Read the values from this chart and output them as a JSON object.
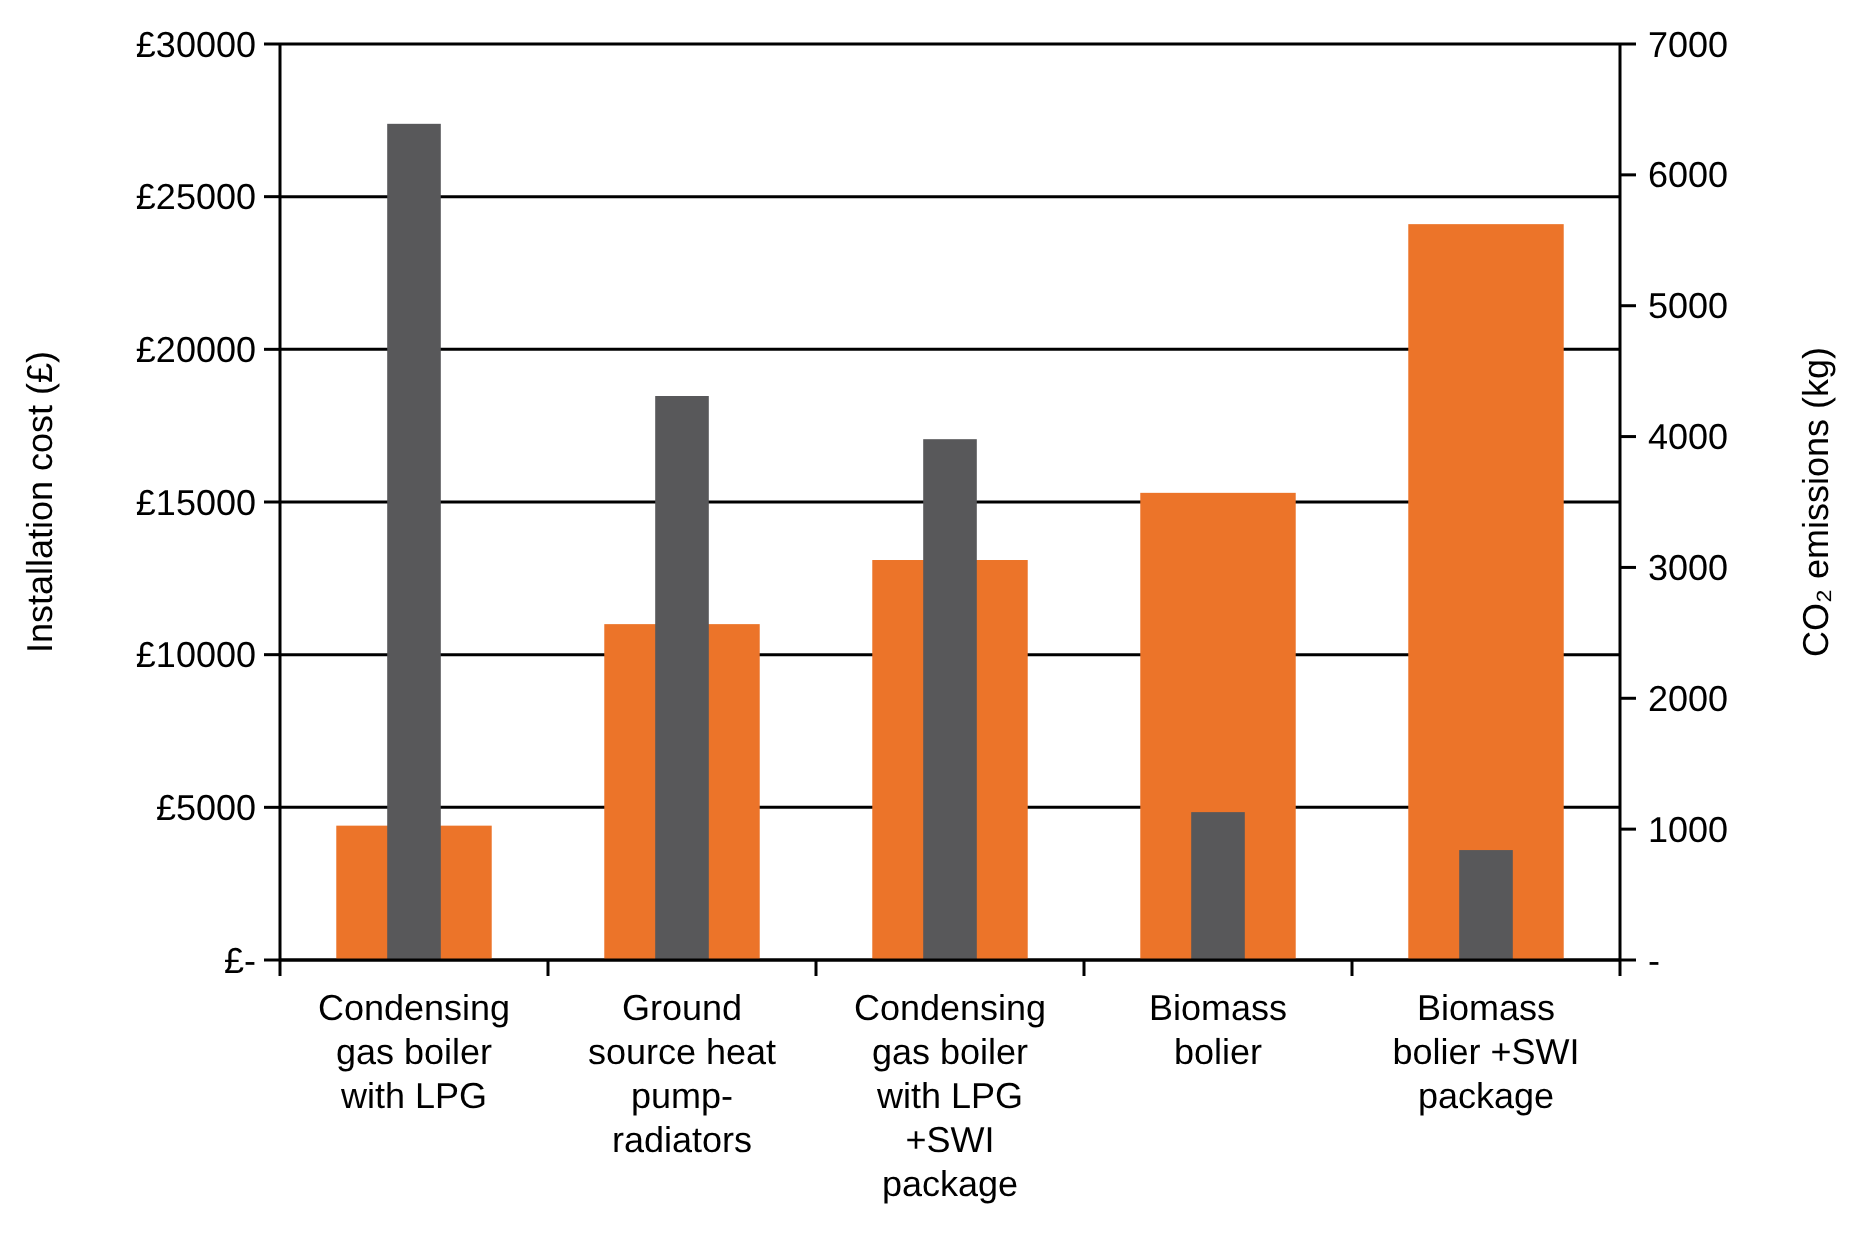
{
  "chart_data": {
    "type": "bar",
    "ylabel": "Installation cost (£)",
    "y2label": "CO₂ emissions (kg)",
    "categories": [
      "Condensing gas boiler with LPG",
      "Ground source heat pump-radiators",
      "Condensing gas boiler with LPG +SWI package",
      "Biomass bolier",
      "Biomass bolier +SWI package"
    ],
    "series": [
      {
        "color": "#ec7429",
        "values": [
          4400,
          11000,
          13100,
          15300,
          24100
        ]
      },
      {
        "axis": "y2",
        "color": "#58585a",
        "values": [
          6390,
          4310,
          3980,
          1130,
          840
        ]
      }
    ],
    "ylim": [
      0,
      30000
    ],
    "yticks": [
      {
        "value": 0,
        "label": "£-"
      },
      {
        "value": 5000,
        "label": "£5000"
      },
      {
        "value": 10000,
        "label": "£10000"
      },
      {
        "value": 15000,
        "label": "£15000"
      },
      {
        "value": 20000,
        "label": "£20000"
      },
      {
        "value": 25000,
        "label": "£25000"
      },
      {
        "value": 30000,
        "label": "£30000"
      }
    ],
    "y2lim": [
      0,
      7000
    ],
    "y2ticks": [
      {
        "value": 0,
        "label": "-"
      },
      1000,
      2000,
      3000,
      4000,
      5000,
      6000,
      7000
    ],
    "grid": "y"
  }
}
